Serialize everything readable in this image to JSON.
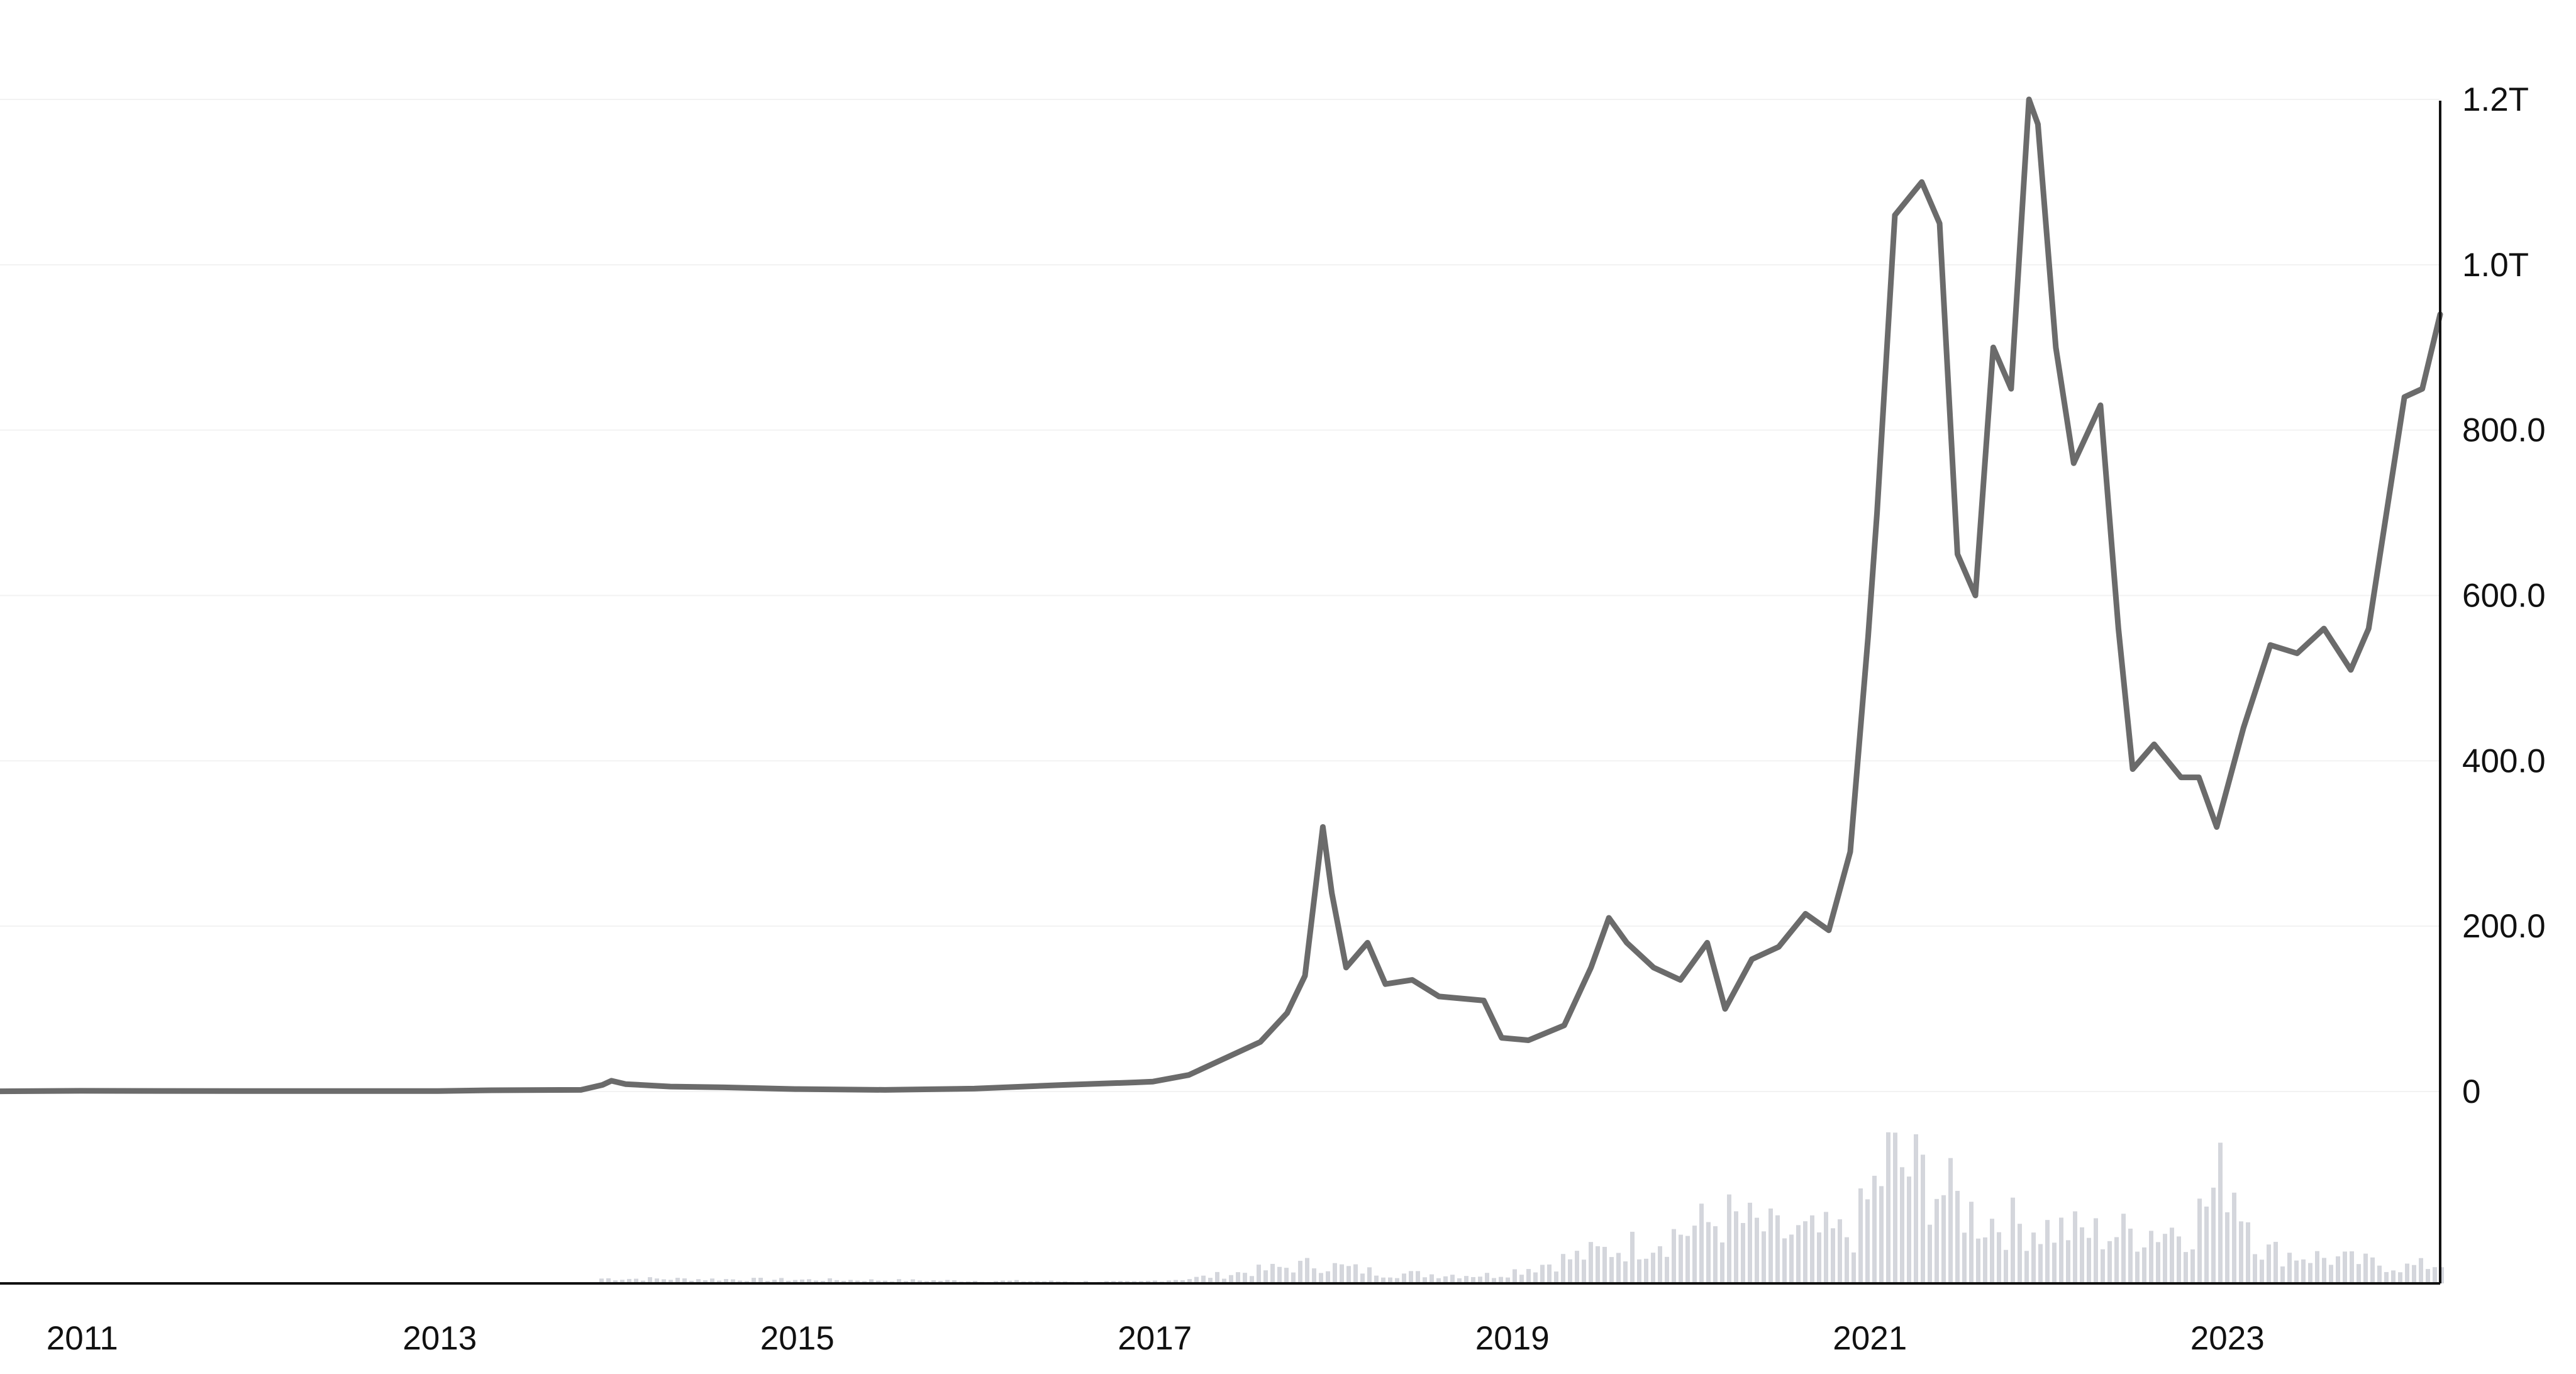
{
  "chart_data": {
    "type": "line",
    "title": "",
    "xlabel": "",
    "ylabel": "",
    "x_ticks": [
      "2011",
      "2013",
      "2015",
      "2017",
      "2019",
      "2021",
      "2023"
    ],
    "y_ticks": [
      "0",
      "200.0",
      "400.0",
      "600.0",
      "800.0",
      "1.0T",
      "1.2T"
    ],
    "y_tick_values": [
      0,
      200,
      400,
      600,
      800,
      1000,
      1200
    ],
    "y_unit": "billions",
    "xlim": [
      2010.55,
      2024.2
    ],
    "ylim": [
      0,
      1200
    ],
    "grid": true,
    "legend": "none",
    "colors": {
      "line": "#6b6b6b",
      "volume": "#d4d6dc",
      "axis": "#111111",
      "grid": "#f2f2f2"
    },
    "series": [
      {
        "values": [
          [
            2010.55,
            0.3
          ],
          [
            2011.0,
            0.8
          ],
          [
            2012.0,
            0.5
          ],
          [
            2013.0,
            0.6
          ],
          [
            2013.3,
            1.5
          ],
          [
            2013.8,
            2.0
          ],
          [
            2013.92,
            8.0
          ],
          [
            2013.97,
            13.0
          ],
          [
            2014.05,
            9.0
          ],
          [
            2014.3,
            6.0
          ],
          [
            2014.6,
            5.0
          ],
          [
            2015.0,
            3.0
          ],
          [
            2015.5,
            2.0
          ],
          [
            2016.0,
            3.5
          ],
          [
            2016.5,
            8.0
          ],
          [
            2016.9,
            11.0
          ],
          [
            2017.0,
            12.0
          ],
          [
            2017.2,
            20.0
          ],
          [
            2017.4,
            40.0
          ],
          [
            2017.6,
            60.0
          ],
          [
            2017.75,
            95.0
          ],
          [
            2017.85,
            140.0
          ],
          [
            2017.95,
            320.0
          ],
          [
            2018.0,
            240.0
          ],
          [
            2018.08,
            150.0
          ],
          [
            2018.2,
            180.0
          ],
          [
            2018.3,
            130.0
          ],
          [
            2018.45,
            135.0
          ],
          [
            2018.6,
            115.0
          ],
          [
            2018.85,
            110.0
          ],
          [
            2018.95,
            65.0
          ],
          [
            2019.1,
            62.0
          ],
          [
            2019.3,
            80.0
          ],
          [
            2019.45,
            150.0
          ],
          [
            2019.55,
            210.0
          ],
          [
            2019.65,
            180.0
          ],
          [
            2019.8,
            150.0
          ],
          [
            2019.95,
            135.0
          ],
          [
            2020.1,
            180.0
          ],
          [
            2020.2,
            100.0
          ],
          [
            2020.35,
            160.0
          ],
          [
            2020.5,
            175.0
          ],
          [
            2020.65,
            215.0
          ],
          [
            2020.78,
            195.0
          ],
          [
            2020.9,
            290.0
          ],
          [
            2021.0,
            550.0
          ],
          [
            2021.05,
            700.0
          ],
          [
            2021.15,
            1060.0
          ],
          [
            2021.3,
            1100.0
          ],
          [
            2021.4,
            1050.0
          ],
          [
            2021.5,
            650.0
          ],
          [
            2021.6,
            600.0
          ],
          [
            2021.7,
            900.0
          ],
          [
            2021.8,
            850.0
          ],
          [
            2021.9,
            1200.0
          ],
          [
            2021.95,
            1170.0
          ],
          [
            2022.05,
            900.0
          ],
          [
            2022.15,
            760.0
          ],
          [
            2022.3,
            830.0
          ],
          [
            2022.4,
            560.0
          ],
          [
            2022.48,
            390.0
          ],
          [
            2022.6,
            420.0
          ],
          [
            2022.75,
            380.0
          ],
          [
            2022.85,
            380.0
          ],
          [
            2022.95,
            320.0
          ],
          [
            2023.1,
            440.0
          ],
          [
            2023.25,
            540.0
          ],
          [
            2023.4,
            530.0
          ],
          [
            2023.55,
            560.0
          ],
          [
            2023.7,
            510.0
          ],
          [
            2023.8,
            560.0
          ],
          [
            2023.9,
            700.0
          ],
          [
            2024.0,
            840.0
          ],
          [
            2024.1,
            850.0
          ],
          [
            2024.2,
            940.0
          ]
        ]
      }
    ],
    "volume": {
      "relative_values": [
        [
          2013.9,
          0.03
        ],
        [
          2016.9,
          0.01
        ],
        [
          2017.2,
          0.03
        ],
        [
          2017.9,
          0.12
        ],
        [
          2018.3,
          0.06
        ],
        [
          2018.9,
          0.05
        ],
        [
          2019.3,
          0.15
        ],
        [
          2019.7,
          0.24
        ],
        [
          2020.2,
          0.4
        ],
        [
          2020.5,
          0.3
        ],
        [
          2020.9,
          0.3
        ],
        [
          2021.1,
          0.75
        ],
        [
          2021.3,
          0.65
        ],
        [
          2021.6,
          0.4
        ],
        [
          2021.9,
          0.35
        ],
        [
          2022.3,
          0.3
        ],
        [
          2022.8,
          0.35
        ],
        [
          2023.0,
          0.7
        ],
        [
          2023.2,
          0.2
        ],
        [
          2023.6,
          0.15
        ],
        [
          2024.0,
          0.1
        ],
        [
          2024.2,
          0.12
        ]
      ]
    }
  }
}
